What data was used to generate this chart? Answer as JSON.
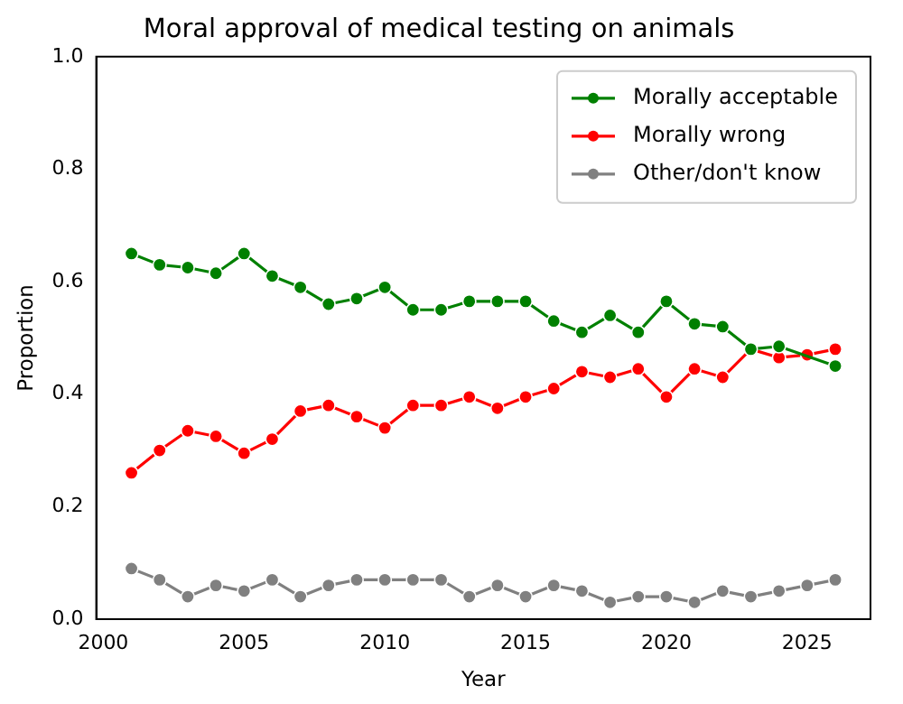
{
  "chart_data": {
    "type": "line",
    "title": "Moral approval of medical testing on animals",
    "xlabel": "Year",
    "ylabel": "Proportion",
    "x": [
      2001,
      2002,
      2003,
      2004,
      2005,
      2006,
      2007,
      2008,
      2009,
      2010,
      2011,
      2012,
      2013,
      2014,
      2015,
      2016,
      2017,
      2018,
      2019,
      2020,
      2021,
      2022,
      2023,
      2024,
      2025,
      2026
    ],
    "series": [
      {
        "name": "Morally acceptable",
        "color": "#008000",
        "values": [
          0.65,
          0.63,
          0.625,
          0.615,
          0.65,
          0.61,
          0.59,
          0.56,
          0.57,
          0.59,
          0.55,
          0.55,
          0.565,
          0.565,
          0.565,
          0.53,
          0.51,
          0.54,
          0.51,
          0.565,
          0.525,
          0.52,
          0.48,
          0.485,
          null,
          0.45
        ]
      },
      {
        "name": "Morally wrong",
        "color": "#ff0000",
        "values": [
          0.26,
          0.3,
          0.335,
          0.325,
          0.295,
          0.32,
          0.37,
          0.38,
          0.36,
          0.34,
          0.38,
          0.38,
          0.395,
          0.375,
          0.395,
          0.41,
          0.44,
          0.43,
          0.445,
          0.395,
          0.445,
          0.43,
          0.48,
          0.465,
          0.47,
          0.48
        ]
      },
      {
        "name": "Other/don't know",
        "color": "#808080",
        "values": [
          0.09,
          0.07,
          0.04,
          0.06,
          0.05,
          0.07,
          0.04,
          0.06,
          0.07,
          0.07,
          0.07,
          0.07,
          0.04,
          0.06,
          0.04,
          0.06,
          0.05,
          0.03,
          0.04,
          0.04,
          0.03,
          0.05,
          0.04,
          0.05,
          0.06,
          0.07
        ]
      }
    ],
    "xlim": [
      1999.75,
      2027.25
    ],
    "xticks": [
      2000,
      2005,
      2010,
      2015,
      2020,
      2025
    ],
    "ylim": [
      0,
      1
    ],
    "yticks": [
      {
        "value": 0,
        "label": "0.0"
      },
      {
        "value": 0.2,
        "label": "0.2"
      },
      {
        "value": 0.4,
        "label": "0.4"
      },
      {
        "value": 0.6,
        "label": "0.6"
      },
      {
        "value": 0.8,
        "label": "0.8"
      },
      {
        "value": 1,
        "label": "1.0"
      }
    ],
    "grid": false,
    "legend": "top right",
    "marker": "circle",
    "line_style": "solid"
  }
}
